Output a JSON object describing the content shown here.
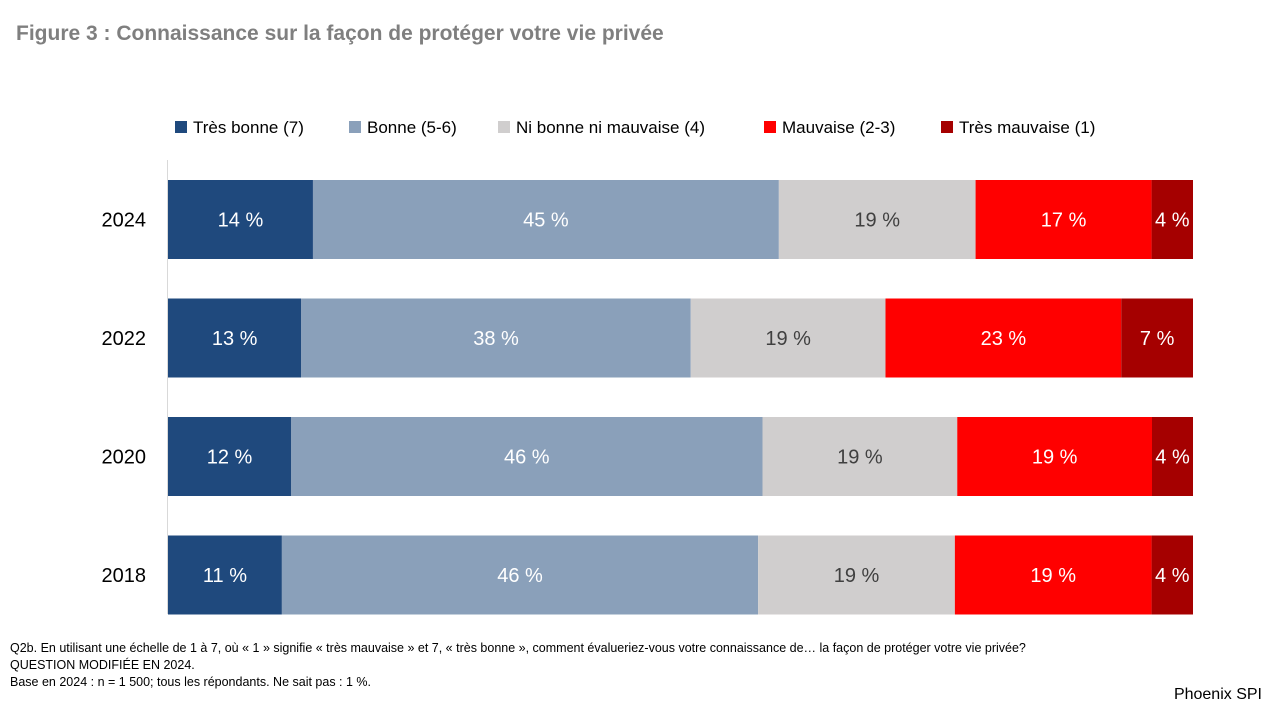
{
  "figure": {
    "title": "Figure 3 : Connaissance sur la façon de protéger votre vie privée"
  },
  "chart_data": {
    "type": "bar",
    "orientation": "horizontal",
    "stacked": true,
    "categories": [
      "2024",
      "2022",
      "2020",
      "2018"
    ],
    "series": [
      {
        "name": "Très bonne (7)",
        "color": "#1f497d",
        "values": [
          14,
          13,
          12,
          11
        ],
        "labels": [
          "14 %",
          "13 %",
          "12 %",
          "11 %"
        ],
        "label_color": "#ffffff"
      },
      {
        "name": "Bonne (5-6)",
        "color": "#8aa0ba",
        "values": [
          45,
          38,
          46,
          46
        ],
        "labels": [
          "45 %",
          "38 %",
          "46 %",
          "46 %"
        ],
        "label_color": "#ffffff"
      },
      {
        "name": "Ni bonne ni mauvaise (4)",
        "color": "#d0cece",
        "values": [
          19,
          19,
          19,
          19
        ],
        "labels": [
          "19 %",
          "19 %",
          "19 %",
          "19 %"
        ],
        "label_color": "#404040"
      },
      {
        "name": "Mauvaise (2-3)",
        "color": "#ff0000",
        "values": [
          17,
          23,
          19,
          19
        ],
        "labels": [
          "17 %",
          "23 %",
          "19 %",
          "19 %"
        ],
        "label_color": "#ffffff"
      },
      {
        "name": "Très mauvaise (1)",
        "color": "#a50000",
        "values": [
          4,
          7,
          4,
          4
        ],
        "labels": [
          "4 %",
          "7 %",
          "4 %",
          "4 %"
        ],
        "label_color": "#ffffff"
      }
    ],
    "xlim": [
      0,
      100
    ],
    "legend_position": "top",
    "grid": false
  },
  "footnotes": {
    "question": "Q2b. En utilisant une échelle de 1 à 7, où « 1 » signifie « très mauvaise » et 7, « très bonne », comment évalueriez-vous votre connaissance de… la façon de protéger votre vie privée?",
    "modified": "QUESTION MODIFIÉE EN 2024.",
    "base": "Base en 2024 : n = 1 500; tous les répondants. Ne sait pas : 1 %."
  },
  "brand": "Phoenix SPI"
}
